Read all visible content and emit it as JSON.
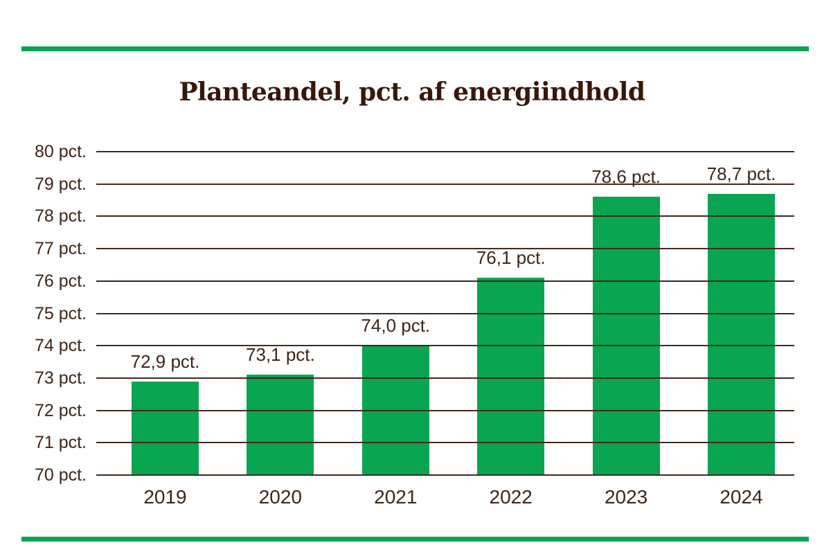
{
  "page": {
    "title": "Planteandel, pct. af energiindhold"
  },
  "colors": {
    "bar_green": "#0aa551",
    "accent_rule_green": "#0aa551",
    "gridline_brown": "#42291a",
    "label_brown": "#3e2517",
    "title_brown": "#391708"
  },
  "chart_data": {
    "type": "bar",
    "title": "Planteandel, pct. af energiindhold",
    "categories": [
      "2019",
      "2020",
      "2021",
      "2022",
      "2023",
      "2024"
    ],
    "values": [
      72.9,
      73.1,
      74.0,
      76.1,
      78.6,
      78.7
    ],
    "bar_labels": [
      "72,9 pct.",
      "73,1 pct.",
      "74,0 pct.",
      "76,1 pct.",
      "78,6 pct.",
      "78,7 pct."
    ],
    "xlabel": "",
    "ylabel": "",
    "ylim": [
      70,
      80
    ],
    "y_ticks": [
      {
        "value": 80,
        "label": "80 pct."
      },
      {
        "value": 79,
        "label": "79 pct."
      },
      {
        "value": 78,
        "label": "78 pct."
      },
      {
        "value": 77,
        "label": "77 pct."
      },
      {
        "value": 76,
        "label": "76 pct."
      },
      {
        "value": 75,
        "label": "75 pct."
      },
      {
        "value": 74,
        "label": "74 pct."
      },
      {
        "value": 73,
        "label": "73 pct."
      },
      {
        "value": 72,
        "label": "72 pct."
      },
      {
        "value": 71,
        "label": "71 pct."
      },
      {
        "value": 70,
        "label": "70 pct."
      }
    ],
    "grid": true,
    "gridlines_over_bars": true,
    "legend": false,
    "decimal_separator": ","
  }
}
